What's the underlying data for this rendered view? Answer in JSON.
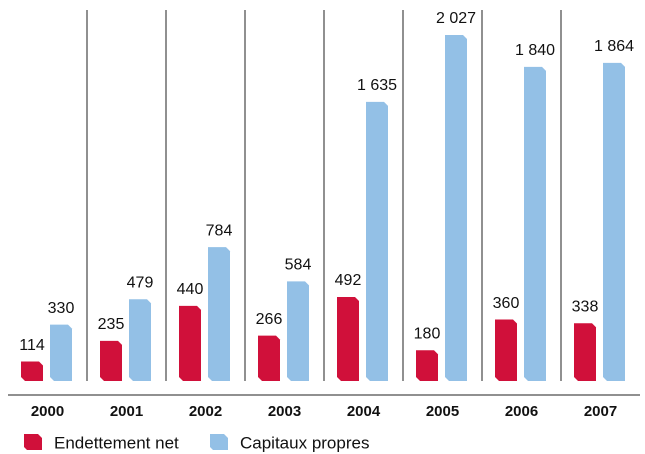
{
  "chart_data": {
    "type": "bar",
    "categories": [
      "2000",
      "2001",
      "2002",
      "2003",
      "2004",
      "2005",
      "2006",
      "2007"
    ],
    "series": [
      {
        "name": "Endettement net",
        "color": "#d0103a",
        "values": [
          114,
          235,
          440,
          266,
          492,
          180,
          360,
          338
        ],
        "value_labels": [
          "114",
          "235",
          "440",
          "266",
          "492",
          "180",
          "360",
          "338"
        ]
      },
      {
        "name": "Capitaux propres",
        "color": "#93c0e6",
        "values": [
          330,
          479,
          784,
          584,
          1635,
          2027,
          1840,
          1864
        ],
        "value_labels": [
          "330",
          "479",
          "784",
          "584",
          "1 635",
          "2 027",
          "1 840",
          "1 864"
        ]
      }
    ]
  }
}
